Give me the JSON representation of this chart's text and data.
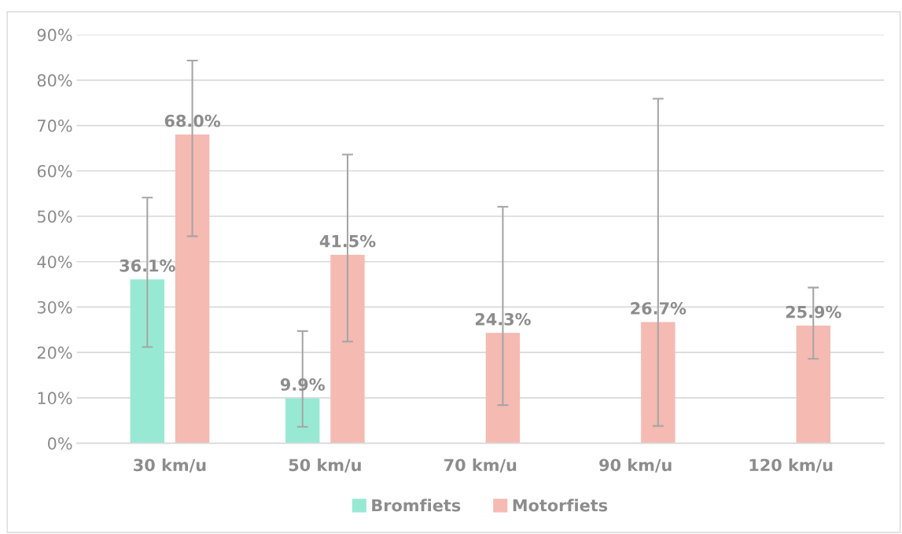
{
  "chart_data": {
    "type": "bar",
    "categories": [
      "30 km/u",
      "50 km/u",
      "70 km/u",
      "90 km/u",
      "120 km/u"
    ],
    "series": [
      {
        "name": "Bromfiets",
        "color": "#98e9d4",
        "values": [
          36.1,
          9.9,
          null,
          null,
          null
        ],
        "value_labels": [
          "36.1%",
          "9.9%",
          null,
          null,
          null
        ],
        "errors": [
          [
            21.2,
            54.1
          ],
          [
            3.6,
            24.7
          ],
          null,
          null,
          null
        ]
      },
      {
        "name": "Motorfiets",
        "color": "#f5bab2",
        "values": [
          68.0,
          41.5,
          24.3,
          26.7,
          25.9
        ],
        "value_labels": [
          "68.0%",
          "41.5%",
          "24.3%",
          "26.7%",
          "25.9%"
        ],
        "errors": [
          [
            45.6,
            84.3
          ],
          [
            22.4,
            63.6
          ],
          [
            8.4,
            52.1
          ],
          [
            3.8,
            75.9
          ],
          [
            18.6,
            34.3
          ]
        ]
      }
    ],
    "ylim": [
      0,
      90
    ],
    "yticks": [
      {
        "value": 0,
        "label": "0%"
      },
      {
        "value": 10,
        "label": "10%"
      },
      {
        "value": 20,
        "label": "20%"
      },
      {
        "value": 30,
        "label": "30%"
      },
      {
        "value": 40,
        "label": "40%"
      },
      {
        "value": 50,
        "label": "50%"
      },
      {
        "value": 60,
        "label": "60%"
      },
      {
        "value": 70,
        "label": "70%"
      },
      {
        "value": 80,
        "label": "80%"
      },
      {
        "value": 90,
        "label": "90%"
      }
    ],
    "grid": "y",
    "legend": "bottom"
  }
}
